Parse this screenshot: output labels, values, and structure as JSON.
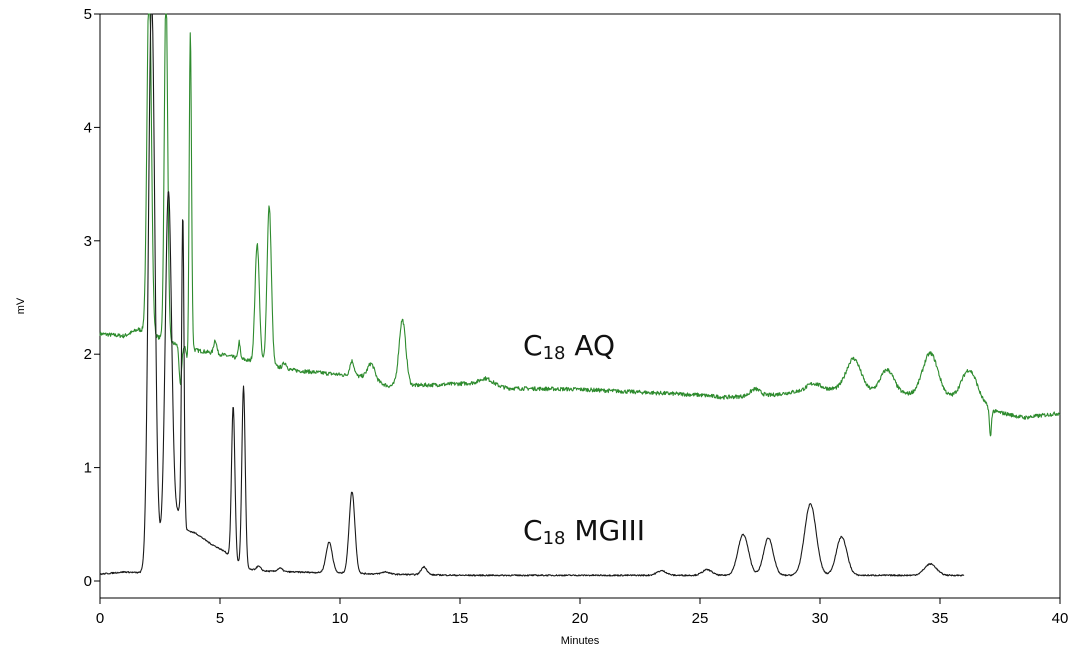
{
  "chart_data": {
    "type": "line",
    "title": "",
    "xlabel": "Minutes",
    "ylabel": "mV",
    "xlim": [
      0,
      40
    ],
    "ylim": [
      -0.15,
      5
    ],
    "x_ticks": [
      "0",
      "5",
      "10",
      "15",
      "20",
      "25",
      "30",
      "35",
      "40"
    ],
    "y_ticks": [
      "0",
      "1",
      "2",
      "3",
      "4",
      "5"
    ],
    "grid": false,
    "series": [
      {
        "name": "C18 AQ",
        "label_main": "C",
        "label_sub": "18",
        "label_rest": " AQ",
        "color": "#2e8b2e",
        "baseline": [
          [
            0,
            2.18
          ],
          [
            1.0,
            2.16
          ],
          [
            1.6,
            2.22
          ],
          [
            3.6,
            2.05
          ],
          [
            5,
            2.0
          ],
          [
            8,
            1.86
          ],
          [
            11,
            1.8
          ],
          [
            12,
            1.72
          ],
          [
            14,
            1.73
          ],
          [
            16,
            1.75
          ],
          [
            17,
            1.7
          ],
          [
            20,
            1.69
          ],
          [
            23,
            1.66
          ],
          [
            25,
            1.64
          ],
          [
            26,
            1.62
          ],
          [
            28,
            1.64
          ],
          [
            30,
            1.7
          ],
          [
            33,
            1.66
          ],
          [
            35,
            1.62
          ],
          [
            36.5,
            1.62
          ],
          [
            37.2,
            1.5
          ],
          [
            38.5,
            1.44
          ],
          [
            40,
            1.48
          ]
        ],
        "peaks": [
          {
            "rt": 2.05,
            "height": 3.2,
            "width": 0.09
          },
          {
            "rt": 2.75,
            "height": 3.1,
            "width": 0.07
          },
          {
            "rt": 3.35,
            "height": -0.35,
            "width": 0.05
          },
          {
            "rt": 3.7,
            "height": -0.45,
            "width": 0.05
          },
          {
            "rt": 3.76,
            "height": 3.0,
            "width": 0.05
          },
          {
            "rt": 4.8,
            "height": 0.12,
            "width": 0.06
          },
          {
            "rt": 5.8,
            "height": 0.15,
            "width": 0.04
          },
          {
            "rt": 6.55,
            "height": 1.05,
            "width": 0.09
          },
          {
            "rt": 7.05,
            "height": 1.4,
            "width": 0.09
          },
          {
            "rt": 7.7,
            "height": 0.05,
            "width": 0.08
          },
          {
            "rt": 10.5,
            "height": 0.13,
            "width": 0.09
          },
          {
            "rt": 11.3,
            "height": 0.14,
            "width": 0.15
          },
          {
            "rt": 12.6,
            "height": 0.58,
            "width": 0.14
          },
          {
            "rt": 16.1,
            "height": 0.04,
            "width": 0.25
          },
          {
            "rt": 27.3,
            "height": 0.06,
            "width": 0.2
          },
          {
            "rt": 29.7,
            "height": 0.05,
            "width": 0.25
          },
          {
            "rt": 31.4,
            "height": 0.28,
            "width": 0.3
          },
          {
            "rt": 32.8,
            "height": 0.2,
            "width": 0.28
          },
          {
            "rt": 34.6,
            "height": 0.38,
            "width": 0.32
          },
          {
            "rt": 36.2,
            "height": 0.24,
            "width": 0.3
          },
          {
            "rt": 37.1,
            "height": -0.25,
            "width": 0.04
          }
        ]
      },
      {
        "name": "C18 MGIII",
        "label_main": "C",
        "label_sub": "18",
        "label_rest": " MGIII",
        "color": "#1a1a1a",
        "x_end": 36,
        "baseline": [
          [
            0,
            0.06
          ],
          [
            1.0,
            0.08
          ],
          [
            1.9,
            0.07
          ],
          [
            3.3,
            0.62
          ],
          [
            3.6,
            0.45
          ],
          [
            4.0,
            0.42
          ],
          [
            4.6,
            0.33
          ],
          [
            5.2,
            0.26
          ],
          [
            5.9,
            0.12
          ],
          [
            6.5,
            0.09
          ],
          [
            8,
            0.08
          ],
          [
            10,
            0.07
          ],
          [
            12,
            0.06
          ],
          [
            15,
            0.05
          ],
          [
            20,
            0.05
          ],
          [
            25,
            0.05
          ],
          [
            30,
            0.05
          ],
          [
            34,
            0.05
          ],
          [
            36,
            0.05
          ]
        ],
        "peaks": [
          {
            "rt": 2.15,
            "height": 5.0,
            "width": 0.13
          },
          {
            "rt": 2.85,
            "height": 3.0,
            "width": 0.13
          },
          {
            "rt": 3.45,
            "height": 2.7,
            "width": 0.05
          },
          {
            "rt": 5.55,
            "height": 1.35,
            "width": 0.07
          },
          {
            "rt": 5.98,
            "height": 1.6,
            "width": 0.07
          },
          {
            "rt": 6.6,
            "height": 0.04,
            "width": 0.1
          },
          {
            "rt": 7.5,
            "height": 0.03,
            "width": 0.1
          },
          {
            "rt": 9.55,
            "height": 0.27,
            "width": 0.13
          },
          {
            "rt": 10.5,
            "height": 0.72,
            "width": 0.12
          },
          {
            "rt": 11.9,
            "height": 0.02,
            "width": 0.15
          },
          {
            "rt": 13.5,
            "height": 0.07,
            "width": 0.12
          },
          {
            "rt": 23.4,
            "height": 0.04,
            "width": 0.2
          },
          {
            "rt": 25.3,
            "height": 0.05,
            "width": 0.2
          },
          {
            "rt": 26.8,
            "height": 0.36,
            "width": 0.22
          },
          {
            "rt": 27.85,
            "height": 0.33,
            "width": 0.2
          },
          {
            "rt": 29.6,
            "height": 0.63,
            "width": 0.24
          },
          {
            "rt": 30.9,
            "height": 0.34,
            "width": 0.22
          },
          {
            "rt": 34.6,
            "height": 0.1,
            "width": 0.25
          }
        ]
      }
    ]
  }
}
